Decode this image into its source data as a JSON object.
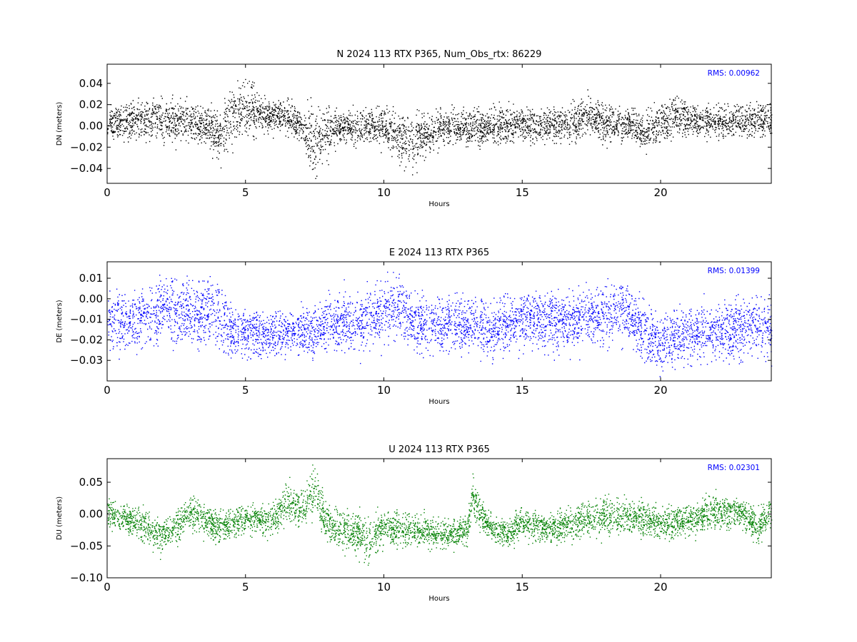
{
  "chart_data": [
    {
      "type": "scatter",
      "title": "N 2024 113 RTX  P365, Num_Obs_rtx: 86229",
      "xlabel": "Hours",
      "ylabel": "DN (meters)",
      "xlim": [
        0,
        24
      ],
      "ylim": [
        -0.054,
        0.058
      ],
      "xticks": [
        "0",
        "5",
        "10",
        "15",
        "20"
      ],
      "yticks": [
        "0.04",
        "0.02",
        "0.00",
        "−0.02",
        "−0.04"
      ],
      "ytick_values": [
        0.04,
        0.02,
        0.0,
        -0.02,
        -0.04
      ],
      "annotation": "RMS:  0.00962",
      "color": "#000000",
      "annotation_color": "#0000ff",
      "grid": false,
      "trend": {
        "hours": [
          0,
          1,
          2,
          3,
          3.6,
          4,
          4.5,
          5,
          5.5,
          6,
          6.5,
          7,
          7.5,
          8,
          8.5,
          9,
          10,
          10.5,
          11,
          11.5,
          12,
          13,
          14,
          15,
          16,
          17,
          17.5,
          18,
          19,
          19.5,
          20,
          20.5,
          21,
          22,
          23,
          24
        ],
        "center": [
          0.003,
          0.005,
          0.006,
          0.004,
          0.0,
          -0.012,
          0.013,
          0.016,
          0.012,
          0.01,
          0.01,
          0.0,
          -0.015,
          -0.005,
          0.0,
          0.0,
          0.0,
          -0.01,
          -0.016,
          -0.008,
          -0.002,
          -0.002,
          0.0,
          0.003,
          0.0,
          0.006,
          0.01,
          0.004,
          0.0,
          -0.004,
          0.002,
          0.01,
          0.006,
          0.004,
          0.006,
          0.006
        ],
        "spread": [
          0.01,
          0.012,
          0.014,
          0.012,
          0.012,
          0.016,
          0.018,
          0.016,
          0.012,
          0.01,
          0.01,
          0.012,
          0.02,
          0.015,
          0.01,
          0.01,
          0.012,
          0.016,
          0.016,
          0.012,
          0.012,
          0.011,
          0.011,
          0.011,
          0.01,
          0.012,
          0.012,
          0.012,
          0.011,
          0.011,
          0.011,
          0.012,
          0.01,
          0.009,
          0.011,
          0.01
        ]
      }
    },
    {
      "type": "scatter",
      "title": "E 2024 113 RTX  P365",
      "xlabel": "Hours",
      "ylabel": "DE (meters)",
      "xlim": [
        0,
        24
      ],
      "ylim": [
        -0.04,
        0.018
      ],
      "xticks": [
        "0",
        "5",
        "10",
        "15",
        "20"
      ],
      "yticks": [
        "0.01",
        "0.00",
        "−0.01",
        "−0.02",
        "−0.03"
      ],
      "ytick_values": [
        0.01,
        0.0,
        -0.01,
        -0.02,
        -0.03
      ],
      "annotation": "RMS:  0.01399",
      "color": "#0000ff",
      "annotation_color": "#0000ff",
      "grid": false,
      "trend": {
        "hours": [
          0,
          1,
          2,
          3,
          4,
          4.5,
          5,
          6,
          7,
          7.5,
          8,
          9,
          10,
          10.5,
          11,
          12,
          13,
          14,
          15,
          16,
          17,
          18,
          18.5,
          19,
          19.5,
          20,
          21,
          22,
          23,
          24
        ],
        "center": [
          -0.01,
          -0.011,
          -0.006,
          -0.007,
          -0.006,
          -0.015,
          -0.017,
          -0.017,
          -0.015,
          -0.018,
          -0.01,
          -0.012,
          -0.006,
          -0.002,
          -0.012,
          -0.013,
          -0.012,
          -0.014,
          -0.01,
          -0.01,
          -0.011,
          -0.008,
          -0.005,
          -0.01,
          -0.018,
          -0.02,
          -0.018,
          -0.016,
          -0.014,
          -0.013
        ],
        "spread": [
          0.009,
          0.009,
          0.01,
          0.01,
          0.01,
          0.008,
          0.008,
          0.007,
          0.007,
          0.008,
          0.009,
          0.009,
          0.01,
          0.01,
          0.009,
          0.009,
          0.009,
          0.009,
          0.009,
          0.009,
          0.009,
          0.01,
          0.011,
          0.009,
          0.009,
          0.009,
          0.009,
          0.009,
          0.009,
          0.009
        ]
      }
    },
    {
      "type": "scatter",
      "title": "U 2024 113 RTX  P365",
      "xlabel": "Hours",
      "ylabel": "DU (meters)",
      "xlim": [
        0,
        24
      ],
      "ylim": [
        -0.1,
        0.087
      ],
      "xticks": [
        "0",
        "5",
        "10",
        "15",
        "20"
      ],
      "yticks": [
        "0.05",
        "0.00",
        "−0.05",
        "−0.10"
      ],
      "ytick_values": [
        0.05,
        0.0,
        -0.05,
        -0.1
      ],
      "annotation": "RMS:  0.02301",
      "color": "#008000",
      "annotation_color": "#0000ff",
      "grid": false,
      "trend": {
        "hours": [
          0,
          1,
          1.8,
          2.5,
          3,
          4,
          5,
          6,
          6.5,
          7,
          7.5,
          8,
          9,
          9.5,
          10,
          11,
          12,
          13,
          13.2,
          13.5,
          14,
          14.5,
          15,
          16,
          17,
          18,
          19,
          20,
          21,
          22,
          23,
          23.5,
          24
        ],
        "center": [
          0.0,
          -0.01,
          -0.035,
          -0.02,
          0.005,
          -0.02,
          -0.005,
          -0.01,
          0.02,
          0.005,
          0.04,
          -0.02,
          -0.03,
          -0.04,
          -0.02,
          -0.025,
          -0.03,
          -0.025,
          0.03,
          -0.005,
          -0.025,
          -0.03,
          -0.01,
          -0.025,
          -0.01,
          -0.002,
          -0.005,
          -0.015,
          -0.01,
          0.005,
          0.0,
          -0.02,
          0.005
        ],
        "spread": [
          0.015,
          0.015,
          0.018,
          0.016,
          0.018,
          0.016,
          0.016,
          0.016,
          0.02,
          0.018,
          0.025,
          0.02,
          0.02,
          0.025,
          0.02,
          0.016,
          0.015,
          0.015,
          0.02,
          0.016,
          0.014,
          0.014,
          0.016,
          0.016,
          0.018,
          0.02,
          0.017,
          0.016,
          0.016,
          0.018,
          0.016,
          0.018,
          0.018
        ]
      }
    }
  ]
}
